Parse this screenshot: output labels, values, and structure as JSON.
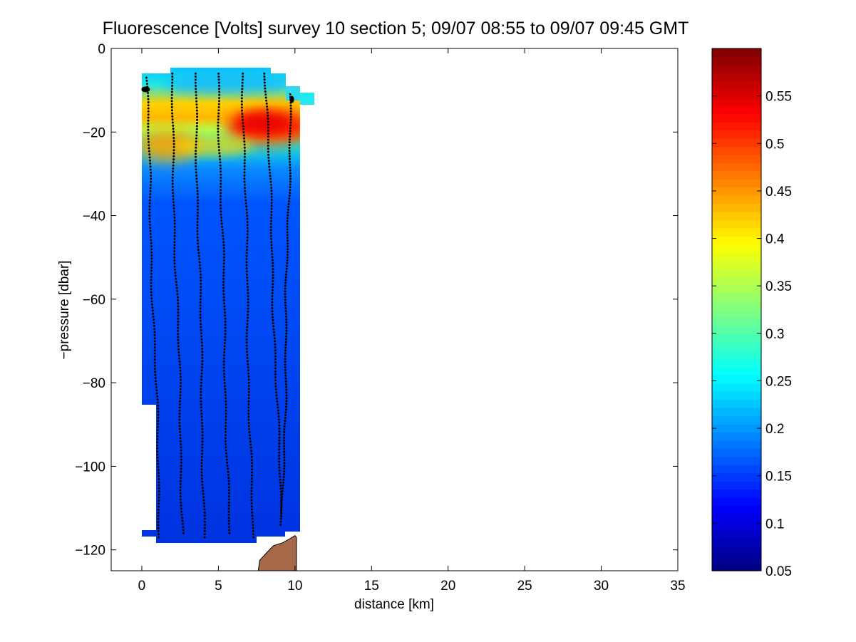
{
  "chart_data": {
    "type": "heatmap",
    "title": "Fluorescence [Volts] survey 10 section 5; 09/07 08:55 to 09/07 09:45 GMT",
    "xlabel": "distance [km]",
    "ylabel": "−pressure [dbar]",
    "xlim": [
      -2,
      35
    ],
    "ylim": [
      -125,
      0
    ],
    "xticks": [
      0,
      5,
      10,
      15,
      20,
      25,
      30,
      35
    ],
    "xtick_labels": [
      "0",
      "5",
      "10",
      "15",
      "20",
      "25",
      "30",
      "35"
    ],
    "yticks": [
      0,
      -20,
      -40,
      -60,
      -80,
      -100,
      -120
    ],
    "ytick_labels": [
      "0",
      "−20",
      "−40",
      "−60",
      "−80",
      "−100",
      "−120"
    ],
    "colorbar": {
      "colormap": "jet",
      "clim": [
        0.05,
        0.6
      ],
      "ticks": [
        0.05,
        0.1,
        0.15,
        0.2,
        0.25,
        0.3,
        0.35,
        0.4,
        0.45,
        0.5,
        0.55
      ],
      "tick_labels": [
        "0.05",
        "0.1",
        "0.15",
        "0.2",
        "0.25",
        "0.3",
        "0.35",
        "0.4",
        "0.45",
        "0.5",
        "0.55"
      ]
    },
    "profiles": [
      {
        "x_top": 0.3,
        "x_bottom": 1.2,
        "top": -7,
        "bottom": -117
      },
      {
        "x_top": 1.9,
        "x_bottom": 2.7,
        "top": -6,
        "bottom": -116
      },
      {
        "x_top": 3.5,
        "x_bottom": 4.1,
        "top": -6,
        "bottom": -117
      },
      {
        "x_top": 5.0,
        "x_bottom": 5.7,
        "top": -6,
        "bottom": -116
      },
      {
        "x_top": 6.6,
        "x_bottom": 7.2,
        "top": -6,
        "bottom": -117
      },
      {
        "x_top": 8.1,
        "x_bottom": 9.1,
        "top": -6,
        "bottom": -114
      },
      {
        "x_top": 9.7,
        "x_bottom": 9.2,
        "top": -11,
        "bottom": -112
      }
    ],
    "bathymetry": [
      [
        7.6,
        -125
      ],
      [
        7.7,
        -122.5
      ],
      [
        8.2,
        -120.5
      ],
      [
        8.6,
        -119
      ],
      [
        9.2,
        -118.3
      ],
      [
        9.6,
        -117.5
      ],
      [
        10.0,
        -116.6
      ],
      [
        10.1,
        -117
      ],
      [
        10.1,
        -125
      ]
    ],
    "bathymetry_color": "#a5694a"
  }
}
